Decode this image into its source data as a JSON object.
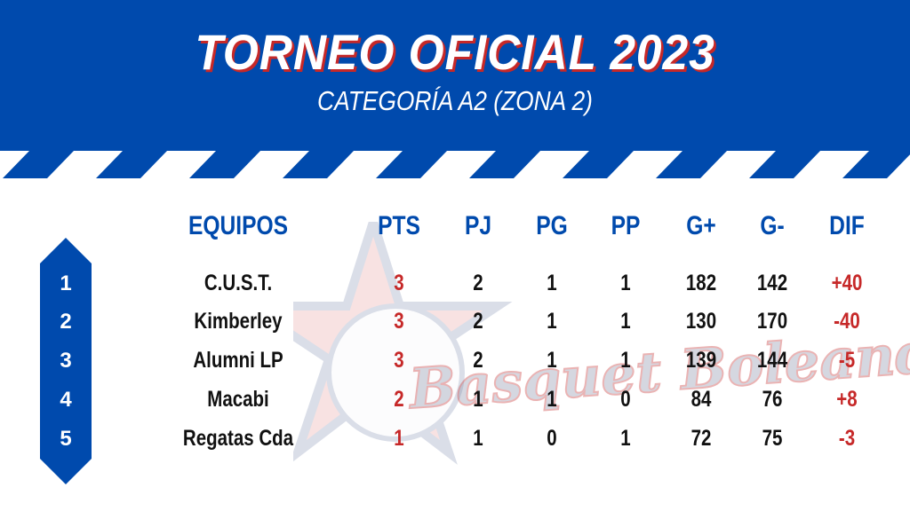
{
  "header": {
    "title": "TORNEO OFICIAL 2023",
    "subtitle": "CATEGORÍA A2 (ZONA 2)"
  },
  "watermark": {
    "logo_text": "Basquet Boleando"
  },
  "colors": {
    "primary": "#004aad",
    "accent": "#c62828",
    "text": "#111111"
  },
  "table": {
    "columns": [
      "EQUIPOS",
      "PTS",
      "PJ",
      "PG",
      "PP",
      "G+",
      "G-",
      "DIF"
    ],
    "rows": [
      {
        "pos": "1",
        "team": "C.U.S.T.",
        "pts": "3",
        "pj": "2",
        "pg": "1",
        "pp": "1",
        "gf": "182",
        "gc": "142",
        "dif": "+40"
      },
      {
        "pos": "2",
        "team": "Kimberley",
        "pts": "3",
        "pj": "2",
        "pg": "1",
        "pp": "1",
        "gf": "130",
        "gc": "170",
        "dif": "-40"
      },
      {
        "pos": "3",
        "team": "Alumni LP",
        "pts": "3",
        "pj": "2",
        "pg": "1",
        "pp": "1",
        "gf": "139",
        "gc": "144",
        "dif": "-5"
      },
      {
        "pos": "4",
        "team": "Macabi",
        "pts": "2",
        "pj": "1",
        "pg": "1",
        "pp": "0",
        "gf": "84",
        "gc": "76",
        "dif": "+8"
      },
      {
        "pos": "5",
        "team": "Regatas Cda",
        "pts": "1",
        "pj": "1",
        "pg": "0",
        "pp": "1",
        "gf": "72",
        "gc": "75",
        "dif": "-3"
      }
    ]
  }
}
